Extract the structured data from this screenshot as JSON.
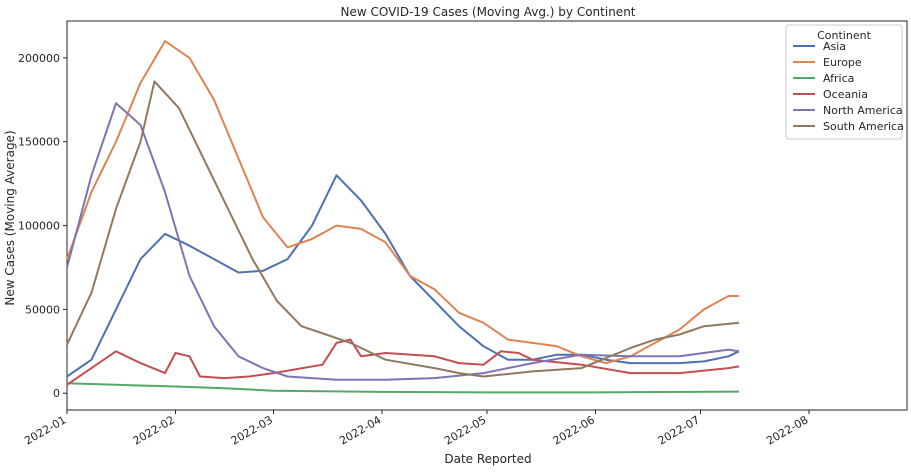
{
  "chart_data": {
    "type": "line",
    "title": "New COVID-19 Cases (Moving Avg.) by Continent",
    "xlabel": "Date Reported",
    "ylabel": "New Cases (Moving Average)",
    "xlim": [
      "2022-01-01",
      "2022-08-29"
    ],
    "ylim": [
      -10000,
      222000
    ],
    "x_ticks": [
      "2022-01",
      "2022-02",
      "2022-03",
      "2022-04",
      "2022-05",
      "2022-06",
      "2022-07",
      "2022-08"
    ],
    "y_ticks": [
      0,
      50000,
      100000,
      150000,
      200000
    ],
    "grid": false,
    "legend": {
      "title": "Continent",
      "placement": "top-right"
    },
    "colors": {
      "Asia": "#4c72b0",
      "Europe": "#dd8452",
      "Africa": "#55a868",
      "Oceania": "#c44e52",
      "North America": "#8172b3",
      "South America": "#937860"
    },
    "series": [
      {
        "name": "Asia",
        "points": [
          [
            "2022-01-01",
            10000
          ],
          [
            "2022-01-08",
            20000
          ],
          [
            "2022-01-15",
            50000
          ],
          [
            "2022-01-22",
            80000
          ],
          [
            "2022-01-29",
            95000
          ],
          [
            "2022-02-05",
            88000
          ],
          [
            "2022-02-12",
            80000
          ],
          [
            "2022-02-19",
            72000
          ],
          [
            "2022-02-26",
            73000
          ],
          [
            "2022-03-05",
            80000
          ],
          [
            "2022-03-12",
            100000
          ],
          [
            "2022-03-19",
            130000
          ],
          [
            "2022-03-26",
            115000
          ],
          [
            "2022-04-02",
            95000
          ],
          [
            "2022-04-09",
            70000
          ],
          [
            "2022-04-16",
            55000
          ],
          [
            "2022-04-23",
            40000
          ],
          [
            "2022-04-30",
            28000
          ],
          [
            "2022-05-07",
            20000
          ],
          [
            "2022-05-14",
            20000
          ],
          [
            "2022-05-21",
            23000
          ],
          [
            "2022-05-28",
            23000
          ],
          [
            "2022-06-04",
            20000
          ],
          [
            "2022-06-11",
            18000
          ],
          [
            "2022-06-18",
            18000
          ],
          [
            "2022-06-25",
            18000
          ],
          [
            "2022-07-02",
            19000
          ],
          [
            "2022-07-09",
            22000
          ],
          [
            "2022-07-12",
            25000
          ]
        ]
      },
      {
        "name": "Europe",
        "points": [
          [
            "2022-01-01",
            80000
          ],
          [
            "2022-01-08",
            120000
          ],
          [
            "2022-01-15",
            150000
          ],
          [
            "2022-01-22",
            185000
          ],
          [
            "2022-01-29",
            210000
          ],
          [
            "2022-02-05",
            200000
          ],
          [
            "2022-02-12",
            175000
          ],
          [
            "2022-02-19",
            140000
          ],
          [
            "2022-02-26",
            105000
          ],
          [
            "2022-03-05",
            87000
          ],
          [
            "2022-03-12",
            92000
          ],
          [
            "2022-03-19",
            100000
          ],
          [
            "2022-03-26",
            98000
          ],
          [
            "2022-04-02",
            90000
          ],
          [
            "2022-04-09",
            70000
          ],
          [
            "2022-04-16",
            62000
          ],
          [
            "2022-04-23",
            48000
          ],
          [
            "2022-04-30",
            42000
          ],
          [
            "2022-05-07",
            32000
          ],
          [
            "2022-05-14",
            30000
          ],
          [
            "2022-05-21",
            28000
          ],
          [
            "2022-05-28",
            22000
          ],
          [
            "2022-06-04",
            18000
          ],
          [
            "2022-06-11",
            22000
          ],
          [
            "2022-06-18",
            30000
          ],
          [
            "2022-06-25",
            38000
          ],
          [
            "2022-07-02",
            50000
          ],
          [
            "2022-07-09",
            58000
          ],
          [
            "2022-07-12",
            58000
          ]
        ]
      },
      {
        "name": "Africa",
        "points": [
          [
            "2022-01-01",
            6000
          ],
          [
            "2022-01-15",
            5000
          ],
          [
            "2022-02-01",
            4000
          ],
          [
            "2022-02-15",
            3000
          ],
          [
            "2022-03-01",
            1500
          ],
          [
            "2022-04-01",
            800
          ],
          [
            "2022-05-01",
            500
          ],
          [
            "2022-06-01",
            500
          ],
          [
            "2022-07-12",
            1000
          ]
        ]
      },
      {
        "name": "Oceania",
        "points": [
          [
            "2022-01-01",
            5000
          ],
          [
            "2022-01-08",
            15000
          ],
          [
            "2022-01-15",
            25000
          ],
          [
            "2022-01-22",
            18000
          ],
          [
            "2022-01-29",
            12000
          ],
          [
            "2022-02-01",
            24000
          ],
          [
            "2022-02-05",
            22000
          ],
          [
            "2022-02-08",
            10000
          ],
          [
            "2022-02-15",
            9000
          ],
          [
            "2022-02-22",
            10000
          ],
          [
            "2022-03-01",
            12000
          ],
          [
            "2022-03-15",
            17000
          ],
          [
            "2022-03-19",
            30000
          ],
          [
            "2022-03-23",
            32000
          ],
          [
            "2022-03-26",
            22000
          ],
          [
            "2022-04-02",
            24000
          ],
          [
            "2022-04-16",
            22000
          ],
          [
            "2022-04-23",
            18000
          ],
          [
            "2022-04-30",
            17000
          ],
          [
            "2022-05-05",
            25000
          ],
          [
            "2022-05-10",
            24000
          ],
          [
            "2022-05-14",
            20000
          ],
          [
            "2022-05-28",
            17000
          ],
          [
            "2022-06-11",
            12000
          ],
          [
            "2022-06-25",
            12000
          ],
          [
            "2022-07-09",
            15000
          ],
          [
            "2022-07-12",
            16000
          ]
        ]
      },
      {
        "name": "North America",
        "points": [
          [
            "2022-01-01",
            75000
          ],
          [
            "2022-01-08",
            130000
          ],
          [
            "2022-01-15",
            173000
          ],
          [
            "2022-01-22",
            160000
          ],
          [
            "2022-01-29",
            120000
          ],
          [
            "2022-02-05",
            70000
          ],
          [
            "2022-02-12",
            40000
          ],
          [
            "2022-02-19",
            22000
          ],
          [
            "2022-02-26",
            15000
          ],
          [
            "2022-03-05",
            10000
          ],
          [
            "2022-03-19",
            8000
          ],
          [
            "2022-04-02",
            8000
          ],
          [
            "2022-04-16",
            9000
          ],
          [
            "2022-04-30",
            12000
          ],
          [
            "2022-05-14",
            18000
          ],
          [
            "2022-05-28",
            23000
          ],
          [
            "2022-06-11",
            22000
          ],
          [
            "2022-06-25",
            22000
          ],
          [
            "2022-07-09",
            26000
          ],
          [
            "2022-07-12",
            25000
          ]
        ]
      },
      {
        "name": "South America",
        "points": [
          [
            "2022-01-01",
            29000
          ],
          [
            "2022-01-08",
            60000
          ],
          [
            "2022-01-15",
            110000
          ],
          [
            "2022-01-22",
            150000
          ],
          [
            "2022-01-26",
            186000
          ],
          [
            "2022-02-02",
            170000
          ],
          [
            "2022-02-09",
            140000
          ],
          [
            "2022-02-16",
            110000
          ],
          [
            "2022-02-23",
            80000
          ],
          [
            "2022-03-02",
            55000
          ],
          [
            "2022-03-09",
            40000
          ],
          [
            "2022-03-16",
            35000
          ],
          [
            "2022-03-23",
            30000
          ],
          [
            "2022-04-02",
            20000
          ],
          [
            "2022-04-16",
            15000
          ],
          [
            "2022-04-23",
            12000
          ],
          [
            "2022-04-30",
            10000
          ],
          [
            "2022-05-14",
            13000
          ],
          [
            "2022-05-28",
            15000
          ],
          [
            "2022-06-11",
            27000
          ],
          [
            "2022-06-18",
            32000
          ],
          [
            "2022-06-25",
            35000
          ],
          [
            "2022-07-02",
            40000
          ],
          [
            "2022-07-12",
            42000
          ]
        ]
      }
    ]
  }
}
